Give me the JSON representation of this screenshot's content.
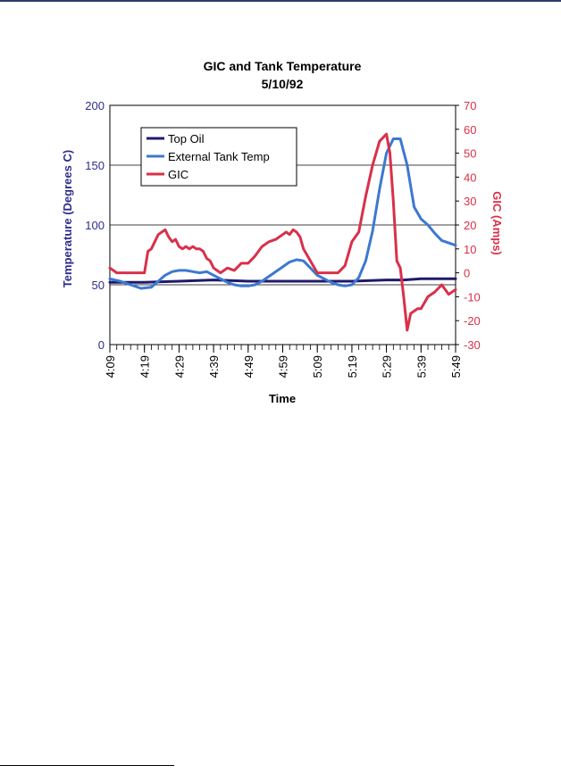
{
  "chart_data": {
    "type": "line",
    "title": "GIC and Tank Temperature",
    "subtitle": "5/10/92",
    "xlabel": "Time",
    "ylabel": "Temperature (Degrees C)",
    "y2label": "GIC (Amps)",
    "ylim": [
      0,
      200
    ],
    "y2lim": [
      -30,
      70
    ],
    "yticks": [
      "0",
      "50",
      "100",
      "150",
      "200"
    ],
    "y2ticks": [
      "-30",
      "-20",
      "-10",
      "0",
      "10",
      "20",
      "30",
      "40",
      "50",
      "60",
      "70"
    ],
    "xlim": [
      0,
      100
    ],
    "xtick_labels": [
      "4:09",
      "4:19",
      "4:29",
      "4:39",
      "4:49",
      "4:59",
      "5:09",
      "5:19",
      "5:29",
      "5:39",
      "5:49"
    ],
    "grid": "horizontal",
    "legend_position": "top-left",
    "colors": {
      "left_axis": "#2e2e8c",
      "right_axis": "#d9304a"
    },
    "series": [
      {
        "name": "Top Oil",
        "axis": "left",
        "color": "#1f1a6b",
        "x": [
          0,
          10,
          20,
          30,
          40,
          50,
          60,
          70,
          80,
          85,
          90,
          100
        ],
        "y": [
          52,
          52,
          53,
          54,
          53,
          53,
          53,
          53,
          54,
          54,
          55,
          55
        ]
      },
      {
        "name": "External Tank Temp",
        "axis": "left",
        "color": "#3d78d0",
        "x": [
          0,
          3,
          6,
          9,
          12,
          14,
          16,
          18,
          20,
          22,
          24,
          26,
          28,
          30,
          32,
          34,
          36,
          38,
          40,
          42,
          44,
          46,
          48,
          50,
          52,
          54,
          56,
          58,
          60,
          62,
          64,
          66,
          68,
          70,
          72,
          74,
          76,
          78,
          80,
          82,
          84,
          86,
          88,
          90,
          92,
          94,
          96,
          98,
          100
        ],
        "y": [
          55,
          53,
          50,
          47,
          48,
          53,
          58,
          61,
          62,
          62,
          61,
          60,
          61,
          58,
          55,
          52,
          50,
          49,
          49,
          50,
          53,
          57,
          61,
          65,
          69,
          71,
          70,
          64,
          58,
          55,
          52,
          50,
          49,
          50,
          56,
          70,
          95,
          130,
          160,
          172,
          172,
          150,
          115,
          105,
          100,
          93,
          87,
          85,
          83
        ]
      },
      {
        "name": "GIC",
        "axis": "right",
        "color": "#d9304a",
        "x": [
          0,
          2,
          4,
          6,
          8,
          10,
          11,
          12,
          14,
          16,
          17,
          18,
          19,
          20,
          21,
          22,
          23,
          24,
          25,
          26,
          27,
          28,
          29,
          30,
          32,
          34,
          36,
          38,
          40,
          42,
          44,
          46,
          48,
          50,
          51,
          52,
          53,
          54,
          55,
          56,
          58,
          60,
          62,
          64,
          66,
          68,
          70,
          72,
          74,
          76,
          78,
          80,
          81,
          82,
          83,
          84,
          85,
          86,
          87,
          88,
          89,
          90,
          92,
          94,
          96,
          98,
          100
        ],
        "y": [
          2,
          0,
          0,
          0,
          0,
          0,
          9,
          10,
          16,
          18,
          15,
          13,
          14,
          11,
          10,
          11,
          10,
          11,
          10,
          10,
          9,
          6,
          5,
          2,
          0,
          2,
          1,
          4,
          4,
          7,
          11,
          13,
          14,
          16,
          17,
          16,
          18,
          17,
          15,
          10,
          5,
          0,
          0,
          0,
          0,
          3,
          13,
          17,
          32,
          45,
          55,
          58,
          50,
          30,
          5,
          2,
          -10,
          -24,
          -17,
          -16,
          -15,
          -15,
          -10,
          -8,
          -5,
          -9,
          -7
        ]
      }
    ]
  }
}
